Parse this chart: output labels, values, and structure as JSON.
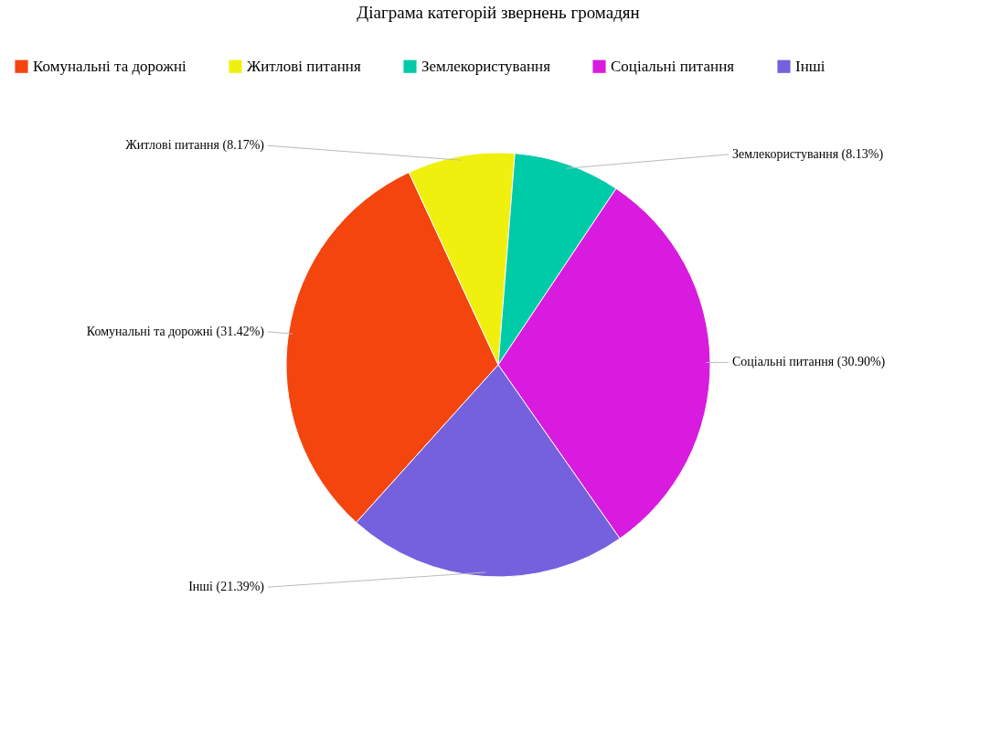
{
  "chart_data": {
    "type": "pie",
    "title": "Діаграма категорій звернень громадян",
    "categories": [
      "Комунальні та дорожні",
      "Житлові питання",
      "Землекористування",
      "Соціальні питання",
      "Інші"
    ],
    "values": [
      31.42,
      8.17,
      8.13,
      30.9,
      21.39
    ],
    "colors": [
      "#f4450f",
      "#f0f00e",
      "#00cba8",
      "#d81bde",
      "#7560de"
    ],
    "value_labels": [
      "Комунальні та дорожні (31.42%)",
      "Житлові питання (8.17%)",
      "Землекористування (8.13%)",
      "Соціальні питання (30.90%)",
      "Інші (21.39%)"
    ],
    "legend": "top"
  }
}
